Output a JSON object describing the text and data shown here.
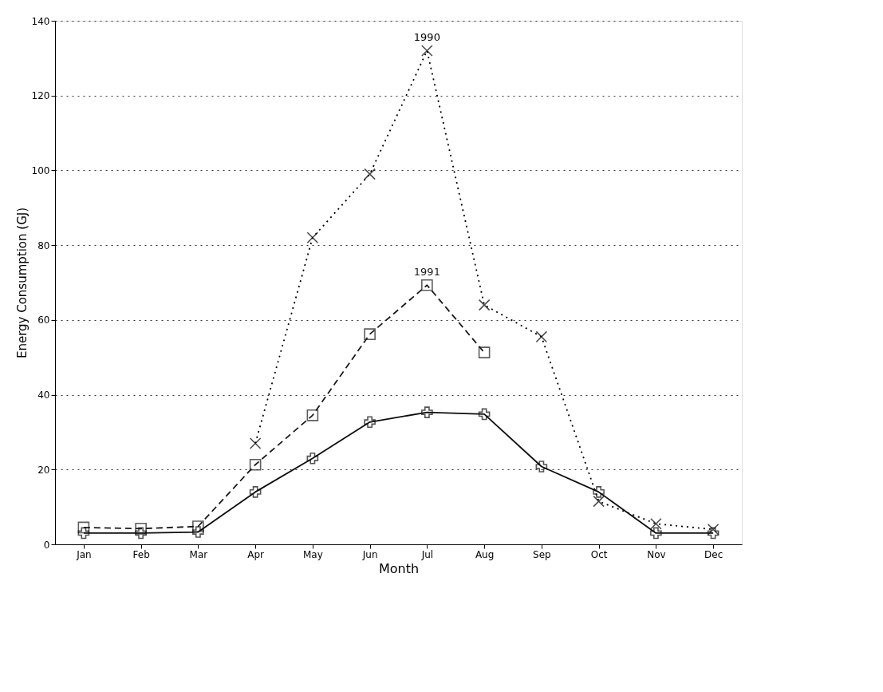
{
  "chart_data": {
    "type": "line",
    "xlabel": "Month",
    "ylabel": "Energy Consumption (GJ)",
    "categories": [
      "Jan",
      "Feb",
      "Mar",
      "Apr",
      "May",
      "Jun",
      "Jul",
      "Aug",
      "Sep",
      "Oct",
      "Nov",
      "Dec"
    ],
    "series": [
      {
        "name": "1990",
        "color": "#000000",
        "marker": "cross",
        "line_style": "dotted",
        "values": [
          null,
          null,
          null,
          27,
          82,
          99,
          132,
          64,
          55.5,
          11.5,
          5.5,
          4
        ]
      },
      {
        "name": "1991",
        "color": "#1a1a1a",
        "marker": "square",
        "line_style": "dashed",
        "values": [
          4.5,
          4.2,
          4.8,
          21.3,
          34.5,
          56.2,
          69.3,
          51.3,
          null,
          null,
          null,
          null
        ]
      },
      {
        "color": "#0d0d0d",
        "marker": "plus",
        "line_style": "solid",
        "values": [
          3,
          3,
          3.3,
          14,
          23,
          32.7,
          35.3,
          34.8,
          20.8,
          14,
          3,
          3
        ]
      }
    ],
    "ylim": [
      0,
      140
    ],
    "yticks": [
      0,
      20,
      40,
      60,
      80,
      100,
      120,
      140
    ],
    "grid": "y"
  }
}
